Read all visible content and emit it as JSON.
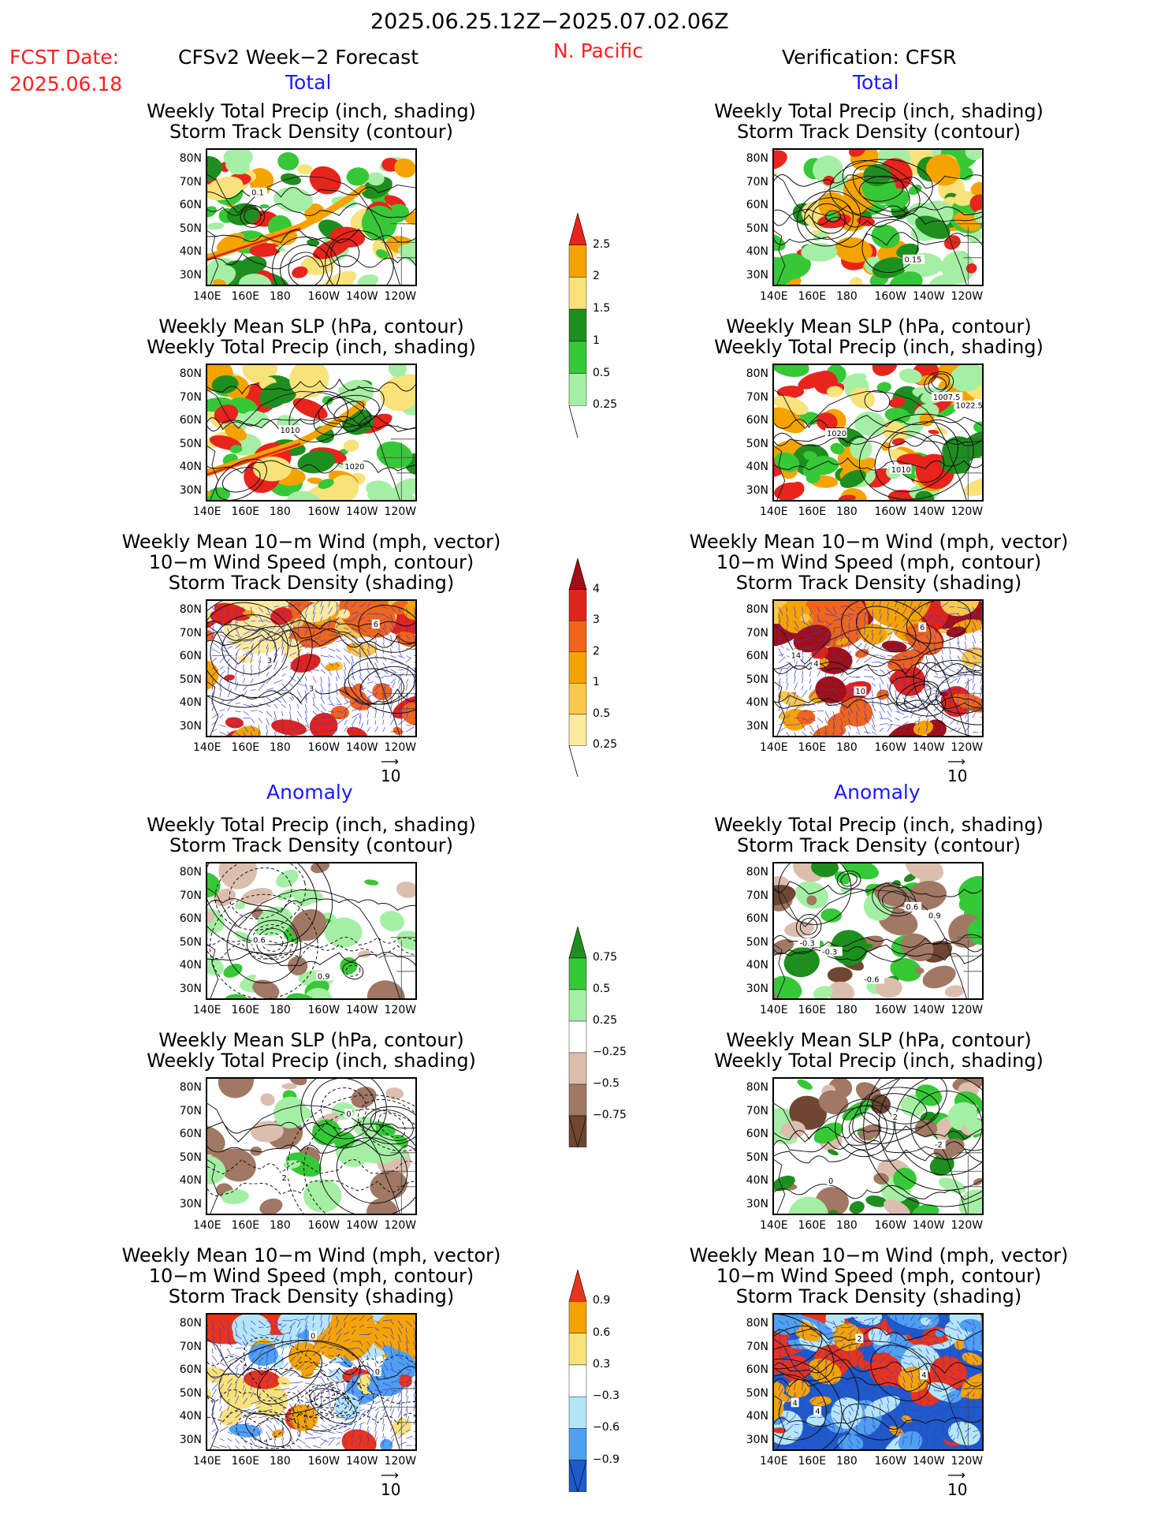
{
  "header": {
    "period": "2025.06.25.12Z−2025.07.02.06Z",
    "fcst_label": "FCST Date:",
    "fcst_date": "2025.06.18",
    "model": "CFSv2 Week−2 Forecast",
    "region": "N. Pacific",
    "verification": "Verification: CFSR"
  },
  "sections": {
    "total": "Total",
    "anomaly": "Anomaly"
  },
  "titles": {
    "precip_storm": [
      "Weekly Total Precip (inch, shading)",
      "Storm Track Density (contour)"
    ],
    "slp_precip": [
      "Weekly Mean SLP (hPa, contour)",
      "Weekly Total Precip (inch, shading)"
    ],
    "wind_storm": [
      "Weekly Mean 10−m Wind (mph, vector)",
      "10−m Wind Speed (mph, contour)",
      "Storm Track Density (shading)"
    ]
  },
  "axes": {
    "lat": [
      "80N",
      "70N",
      "60N",
      "50N",
      "40N",
      "30N"
    ],
    "lon": [
      "140E",
      "160E",
      "180",
      "160W",
      "140W",
      "120W"
    ]
  },
  "vector_ref": "10",
  "colorbars": {
    "precip_total": {
      "labels": [
        "2.5",
        "2",
        "1.5",
        "1",
        "0.5",
        "0.25"
      ],
      "colors": [
        "#e8241c",
        "#f5a300",
        "#f8e27a",
        "#1e8f1e",
        "#37c837",
        "#a5efa5"
      ]
    },
    "storm_total": {
      "labels": [
        "4",
        "3",
        "2",
        "1",
        "0.5",
        "0.25"
      ],
      "colors": [
        "#a00f14",
        "#e0241c",
        "#f0641c",
        "#f5a300",
        "#f8c850",
        "#fbeaa0"
      ]
    },
    "precip_anom": {
      "labels": [
        "0.75",
        "0.5",
        "0.25",
        "−0.25",
        "−0.5",
        "−0.75"
      ],
      "colors": [
        "#1e8f1e",
        "#37c837",
        "#a5efa5",
        "#ffffff",
        "#dcbeaf",
        "#a07864",
        "#6e4632"
      ]
    },
    "storm_anom": {
      "labels": [
        "0.9",
        "0.6",
        "0.3",
        "−0.3",
        "−0.6",
        "−0.9"
      ],
      "colors": [
        "#e8341c",
        "#f5a300",
        "#f8e27a",
        "#ffffff",
        "#b4e6f8",
        "#50a0f0",
        "#1e5ac8"
      ]
    }
  },
  "contour_labels": {
    "p1": [
      "0.1"
    ],
    "p2": [
      "1010",
      "1020"
    ],
    "p3": [
      "3",
      "6",
      "3"
    ],
    "p4": [
      "0.15"
    ],
    "p5": [
      "1007.5",
      "1020",
      "1010",
      "1022.5"
    ],
    "p6": [
      "14",
      "10",
      "6",
      "4"
    ],
    "p7": [
      "0.6",
      "0.9"
    ],
    "p8": [
      "2",
      "0"
    ],
    "p9": [
      "0",
      "0"
    ],
    "p10": [
      "0.6",
      "-0.3",
      "-0.6",
      "0.9",
      "-0.3"
    ],
    "p11": [
      "-2",
      "0",
      "2"
    ],
    "p12": [
      "4",
      "2",
      "4",
      "4"
    ]
  }
}
